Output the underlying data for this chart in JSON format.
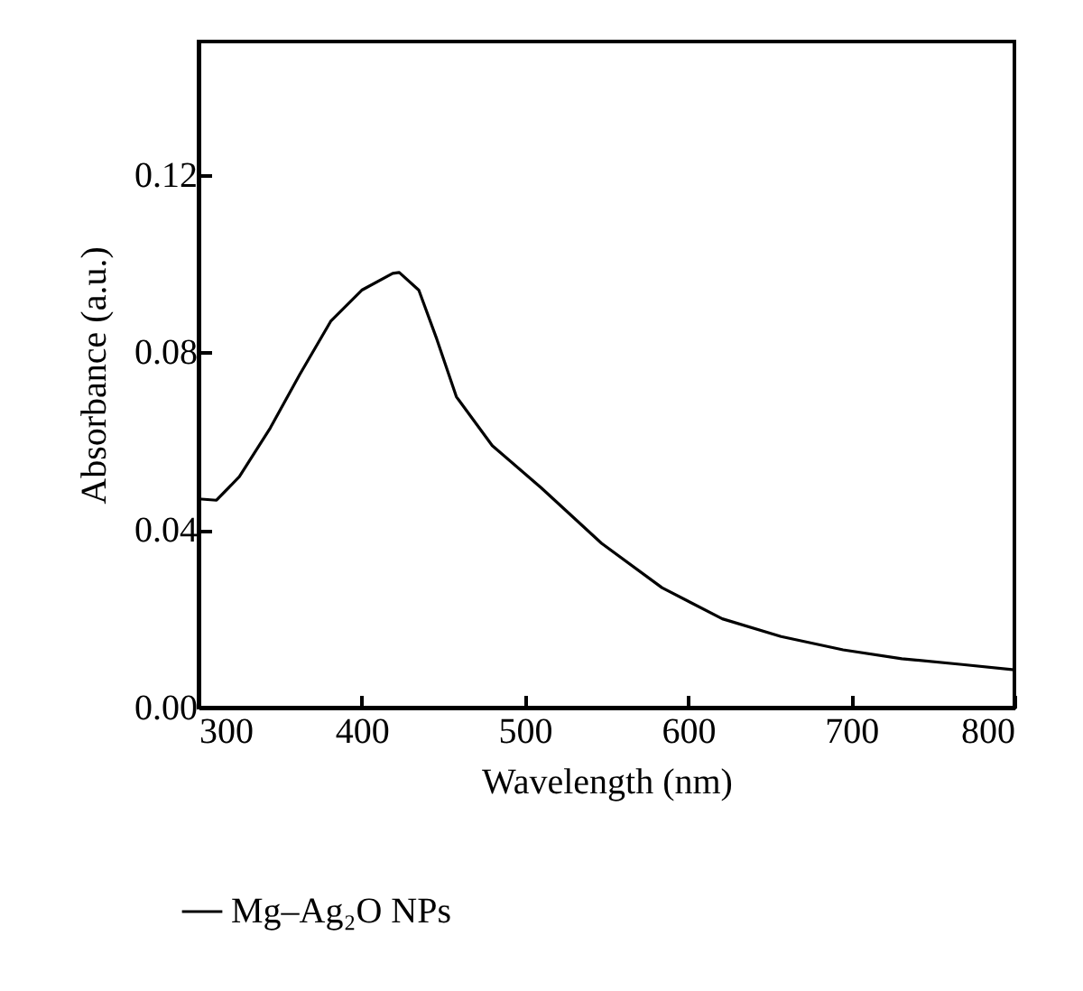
{
  "chart_data": {
    "type": "line",
    "xlabel": "Wavelength (nm)",
    "ylabel": "Absorbance (a.u.)",
    "xlim": [
      300,
      800
    ],
    "xticks": [
      300,
      400,
      500,
      600,
      700,
      800
    ],
    "ylim": [
      0,
      0.15
    ],
    "yticks": [
      {
        "value": 0,
        "label": "0.00"
      },
      {
        "value": 0.04,
        "label": "0.04"
      },
      {
        "value": 0.08,
        "label": "0.08"
      },
      {
        "value": 0.12,
        "label": "0.12"
      }
    ],
    "x": [
      300,
      311,
      325,
      344,
      362,
      381,
      400,
      419,
      423,
      435,
      446,
      458,
      480,
      510,
      547,
      584,
      621,
      657,
      695,
      731,
      768,
      800
    ],
    "series": [
      {
        "name": "Mg–Ag₂O NPs",
        "color": "#000000",
        "values": [
          0.047,
          0.0467,
          0.052,
          0.063,
          0.075,
          0.087,
          0.094,
          0.0978,
          0.098,
          0.094,
          0.083,
          0.07,
          0.059,
          0.0495,
          0.037,
          0.027,
          0.02,
          0.016,
          0.013,
          0.011,
          0.0097,
          0.0085
        ]
      }
    ],
    "legend": "bottom",
    "grid": false
  }
}
